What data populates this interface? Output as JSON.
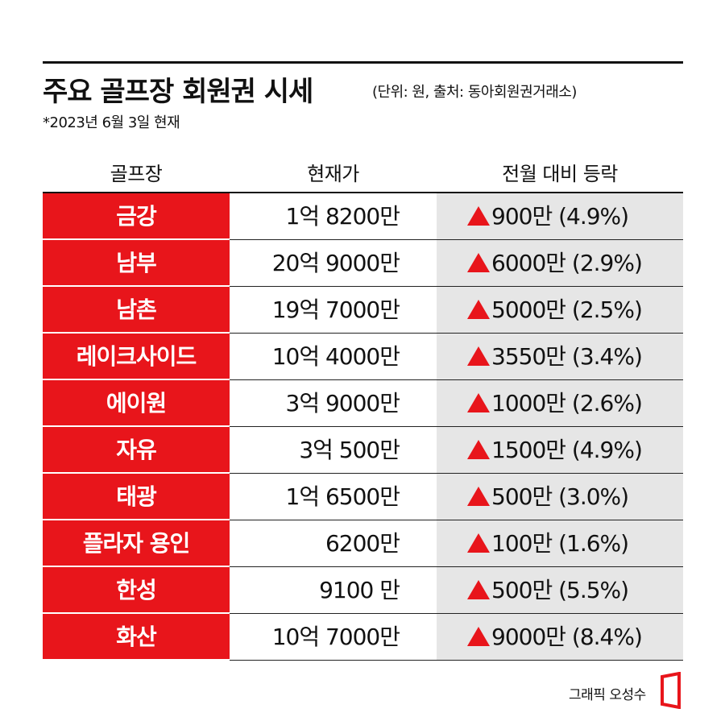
{
  "title": "주요 골프장 회원권 시세",
  "source": "(단위: 원, 출처: 동아회원권거래소)",
  "date_note": "*2023년 6월 3일 현재",
  "columns": {
    "name": "골프장",
    "price": "현재가",
    "change": "전월 대비 등락"
  },
  "rows": [
    {
      "name": "금강",
      "price": "1억 8200만",
      "change": "900만 (4.9%)"
    },
    {
      "name": "남부",
      "price": "20억 9000만",
      "change": "6000만 (2.9%)"
    },
    {
      "name": "남촌",
      "price": "19억 7000만",
      "change": "5000만 (2.5%)"
    },
    {
      "name": "레이크사이드",
      "price": "10억 4000만",
      "change": "3550만 (3.4%)"
    },
    {
      "name": "에이원",
      "price": "3억 9000만",
      "change": "1000만 (2.6%)"
    },
    {
      "name": "자유",
      "price": "3억 500만",
      "change": "1500만 (4.9%)"
    },
    {
      "name": "태광",
      "price": "1억 6500만",
      "change": "500만 (3.0%)"
    },
    {
      "name": "플라자 용인",
      "price": "6200만",
      "change": "100만 (1.6%)"
    },
    {
      "name": "한성",
      "price": "9100 만",
      "change": "500만 (5.5%)"
    },
    {
      "name": "화산",
      "price": "10억 7000만",
      "change": "9000만 (8.4%)"
    }
  ],
  "up_icon": "triangle-up-icon",
  "credit": "그래픽 오성수",
  "colors": {
    "accent": "#e8151b",
    "change_bg": "#e6e6e6",
    "text": "#111111"
  }
}
